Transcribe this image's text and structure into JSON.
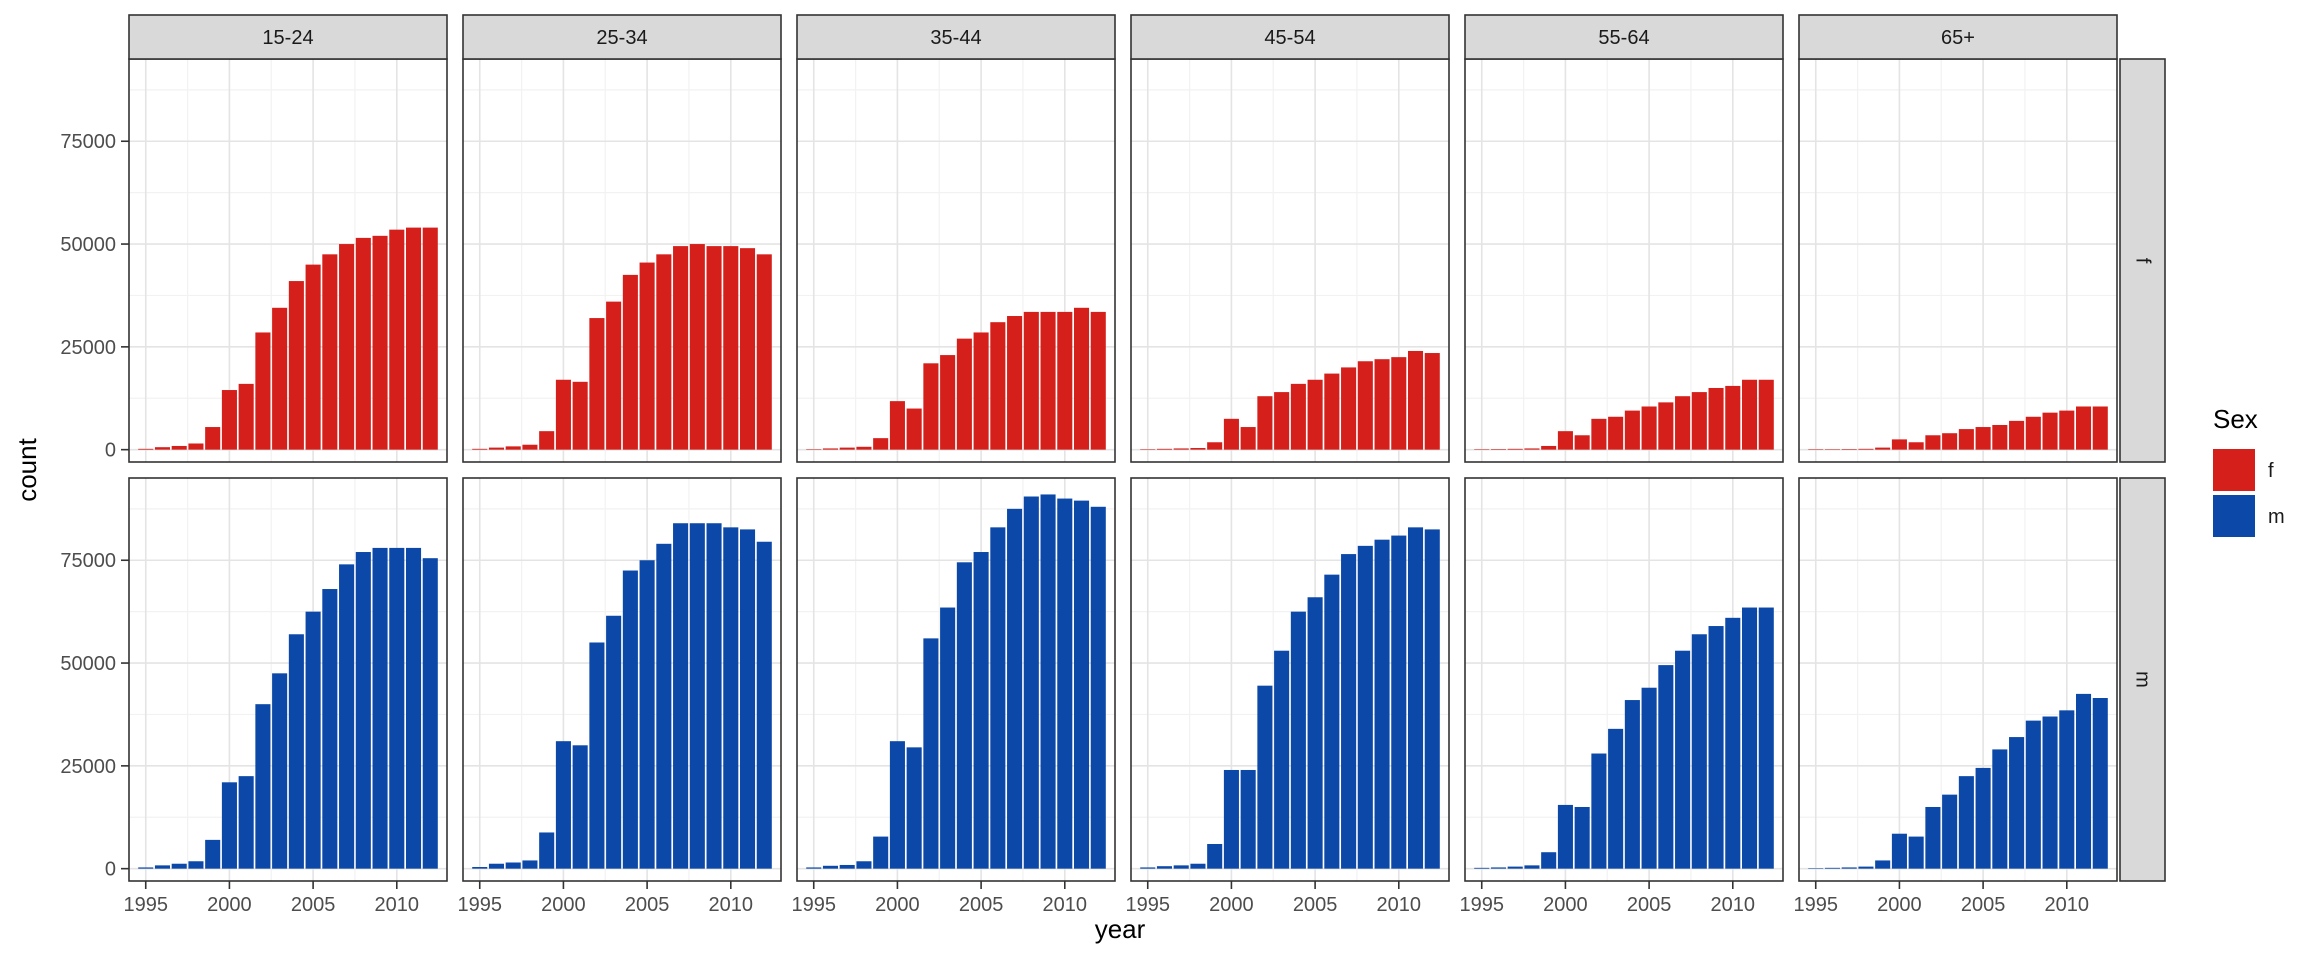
{
  "chart_data": {
    "type": "bar",
    "facet_layout": "grid",
    "xlabel": "year",
    "ylabel": "count",
    "xlim": [
      1994,
      2013
    ],
    "ylim": [
      -3000,
      95000
    ],
    "x_ticks": [
      1995,
      2000,
      2005,
      2010
    ],
    "y_ticks": [
      0,
      25000,
      50000,
      75000
    ],
    "y_tick_labels": [
      "0",
      "25000",
      "50000",
      "75000"
    ],
    "grid": true,
    "legend": {
      "title": "Sex",
      "position": "right",
      "entries": [
        {
          "label": "f",
          "color": "#D51F1A"
        },
        {
          "label": "m",
          "color": "#0B48A8"
        }
      ]
    },
    "col_facets": [
      "15-24",
      "25-34",
      "35-44",
      "45-54",
      "55-64",
      "65+"
    ],
    "row_facets": [
      "f",
      "m"
    ],
    "years": [
      1995,
      1996,
      1997,
      1998,
      1999,
      2000,
      2001,
      2002,
      2003,
      2004,
      2005,
      2006,
      2007,
      2008,
      2009,
      2010,
      2011,
      2012
    ],
    "series": [
      {
        "name": "f",
        "color": "#D51F1A",
        "panels": [
          [
            200,
            600,
            900,
            1500,
            5500,
            14500,
            16000,
            28500,
            34500,
            41000,
            45000,
            47500,
            50000,
            51500,
            52000,
            53500,
            54000,
            54000
          ],
          [
            200,
            500,
            800,
            1200,
            4500,
            17000,
            16500,
            32000,
            36000,
            42500,
            45500,
            47500,
            49500,
            50000,
            49500,
            49500,
            49000,
            47500
          ],
          [
            100,
            300,
            500,
            700,
            2800,
            11800,
            10000,
            21000,
            23000,
            27000,
            28500,
            31000,
            32500,
            33500,
            33500,
            33500,
            34500,
            33500
          ],
          [
            100,
            200,
            300,
            400,
            1800,
            7500,
            5500,
            13000,
            14000,
            16000,
            17000,
            18500,
            20000,
            21500,
            22000,
            22500,
            24000,
            23500
          ],
          [
            100,
            150,
            200,
            300,
            900,
            4500,
            3500,
            7500,
            8000,
            9500,
            10500,
            11500,
            13000,
            14000,
            15000,
            15500,
            17000,
            17000
          ],
          [
            50,
            100,
            150,
            200,
            500,
            2500,
            1800,
            3500,
            4000,
            5000,
            5500,
            6000,
            7000,
            8000,
            9000,
            9500,
            10500,
            10500
          ]
        ]
      },
      {
        "name": "m",
        "color": "#0B48A8",
        "panels": [
          [
            300,
            800,
            1200,
            1800,
            7000,
            21000,
            22500,
            40000,
            47500,
            57000,
            62500,
            68000,
            74000,
            77000,
            78000,
            78000,
            78000,
            75500
          ],
          [
            400,
            1200,
            1500,
            2000,
            8800,
            31000,
            30000,
            55000,
            61500,
            72500,
            75000,
            79000,
            84000,
            84000,
            84000,
            83000,
            82500,
            79500
          ],
          [
            300,
            700,
            900,
            1800,
            7800,
            31000,
            29500,
            56000,
            63500,
            74500,
            77000,
            83000,
            87500,
            90500,
            91000,
            90000,
            89500,
            88000
          ],
          [
            300,
            600,
            800,
            1200,
            6000,
            24000,
            24000,
            44500,
            53000,
            62500,
            66000,
            71500,
            76500,
            78500,
            80000,
            81000,
            83000,
            82500
          ],
          [
            200,
            300,
            500,
            800,
            4000,
            15500,
            15000,
            28000,
            34000,
            41000,
            44000,
            49500,
            53000,
            57000,
            59000,
            61000,
            63500,
            63500
          ],
          [
            100,
            200,
            300,
            500,
            2000,
            8500,
            7800,
            15000,
            18000,
            22500,
            24500,
            29000,
            32000,
            36000,
            37000,
            38500,
            42500,
            41500
          ]
        ]
      }
    ]
  }
}
